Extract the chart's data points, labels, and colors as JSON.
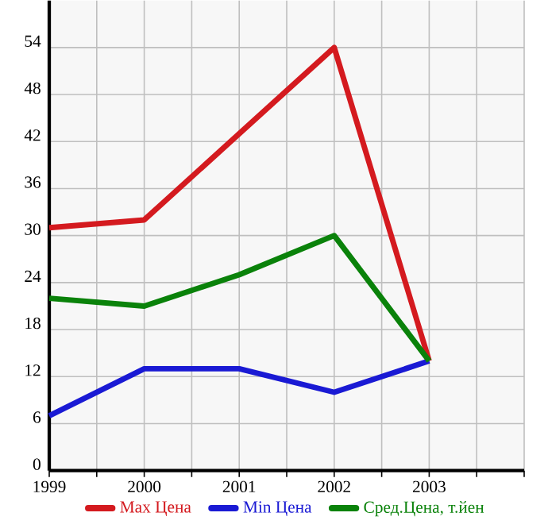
{
  "chart_data": {
    "type": "line",
    "x": [
      1999,
      2000,
      2001,
      2002,
      2003
    ],
    "series": [
      {
        "name": "Max Цена",
        "color": "#d41a1f",
        "values": [
          31,
          32,
          43,
          54,
          14
        ]
      },
      {
        "name": "Min Цена",
        "color": "#1a1ad4",
        "values": [
          7,
          13,
          13,
          10,
          14
        ]
      },
      {
        "name": "Сред.Цена, т.йен",
        "color": "#0a820a",
        "values": [
          22,
          21,
          25,
          30,
          14
        ]
      }
    ],
    "xlim": [
      1999,
      2004
    ],
    "xticks": [
      1999,
      {
        "value": 1999.5,
        "label": null
      },
      2000,
      {
        "value": 2000.5,
        "label": null
      },
      2001,
      {
        "value": 2001.5,
        "label": null
      },
      2002,
      {
        "value": 2002.5,
        "label": null
      },
      2003,
      {
        "value": 2003.5,
        "label": null
      },
      {
        "value": 2004,
        "label": null
      }
    ],
    "ylim": [
      0,
      60
    ],
    "yticks": [
      0,
      6,
      12,
      18,
      24,
      30,
      36,
      42,
      48,
      54
    ],
    "grid": true,
    "legend": "bottom",
    "marker": "none",
    "line_style": "solid"
  }
}
